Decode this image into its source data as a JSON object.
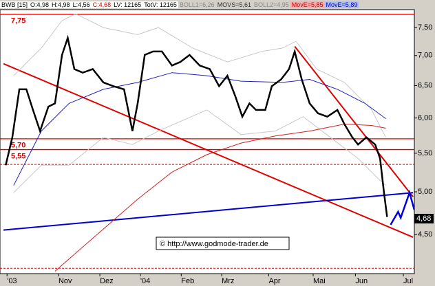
{
  "chart_data": {
    "type": "line",
    "header": [
      "BWB [15]",
      "O:4,98",
      "H:4,98",
      "L:4,56",
      "C:4,68",
      "LV: 12165",
      "TotV: 12165",
      "BOLL1=6,26",
      "MOVS=5,61",
      "BOLL2=4,95",
      "MovE=5,85",
      "MovE=5,89"
    ],
    "header_colors": [
      "#000",
      "#000",
      "#000",
      "#000",
      "#d00000",
      "#000",
      "#000",
      "#888",
      "#333",
      "#888",
      "#d00000",
      "#0000cc"
    ],
    "header_backgrounds": [
      "#fff",
      "#fff",
      "#fff",
      "#fff",
      "#fff",
      "#fff",
      "#fff",
      "#d4d0c8",
      "#d4d0c8",
      "#d4d0c8",
      "#f4b0b0",
      "#b0c0f4"
    ],
    "log_scale": true,
    "ylim": [
      4.086,
      7.84
    ],
    "yticks": [
      {
        "value": 4.5,
        "label": "4,50"
      },
      {
        "value": 5,
        "label": "5,00"
      },
      {
        "value": 5.5,
        "label": "5,50"
      },
      {
        "value": 6,
        "label": "6,00"
      },
      {
        "value": 6.5,
        "label": "6,50"
      },
      {
        "value": 7,
        "label": "7,00"
      },
      {
        "value": 7.5,
        "label": "7,50"
      }
    ],
    "xlim": [
      -0.08,
      9.34
    ],
    "xticks": [
      {
        "value": 0.08,
        "label": "'03"
      },
      {
        "value": 1.25,
        "label": "Nov"
      },
      {
        "value": 2.19,
        "label": "Dez"
      },
      {
        "value": 3.11,
        "label": "'04"
      },
      {
        "value": 4.04,
        "label": "Feb"
      },
      {
        "value": 4.96,
        "label": "Mrz"
      },
      {
        "value": 6.03,
        "label": "Apr"
      },
      {
        "value": 7.04,
        "label": "Mai"
      },
      {
        "value": 8.0,
        "label": "Jun"
      },
      {
        "value": 9.09,
        "label": "Jul"
      }
    ],
    "series": [
      {
        "color": "#c8c8c8",
        "x": [
          0.23,
          0.86,
          1.33,
          1.64,
          2.27,
          3.05,
          3.52,
          4.3,
          5.09,
          5.87,
          6.34,
          6.65,
          7.12,
          7.75,
          8.37,
          8.69
        ],
        "values": [
          6.66,
          7.13,
          7.63,
          7.76,
          7.5,
          7.37,
          7.5,
          7.13,
          6.89,
          7.07,
          7.13,
          7.25,
          6.77,
          6.55,
          6.12,
          5.72
        ]
      },
      {
        "color": "#c8c8c8",
        "x": [
          0.23,
          0.86,
          1.49,
          2.27,
          2.93,
          3.52,
          4.62,
          5.4,
          6.18,
          6.81,
          7.43,
          8.06,
          8.53,
          8.69
        ],
        "values": [
          4.99,
          5.34,
          5.34,
          5.72,
          5.62,
          5.81,
          6.12,
          5.76,
          5.81,
          6.02,
          5.72,
          5.43,
          5.16,
          5.08
        ]
      },
      {
        "color": "#2020c0",
        "x": [
          0.23,
          0.86,
          1.49,
          2.27,
          3.05,
          3.83,
          4.62,
          5.4,
          6.34,
          6.96,
          7.59,
          8.22,
          8.69
        ],
        "values": [
          5.08,
          5.81,
          6.22,
          6.44,
          6.55,
          6.71,
          6.66,
          6.57,
          6.55,
          6.6,
          6.44,
          6.22,
          5.99
        ]
      },
      {
        "color": "#d02020",
        "x": [
          1.17,
          1.96,
          3.05,
          3.83,
          4.62,
          5.4,
          6.18,
          6.96,
          7.75,
          8.37,
          8.69
        ],
        "values": [
          4.11,
          4.43,
          4.91,
          5.25,
          5.48,
          5.64,
          5.74,
          5.81,
          5.91,
          5.89,
          5.85
        ]
      },
      {
        "color": "#000000",
        "x": [
          0.05,
          0.2,
          0.36,
          0.52,
          0.67,
          0.83,
          1.02,
          1.17,
          1.33,
          1.46,
          1.61,
          1.8,
          2.03,
          2.27,
          2.5,
          2.74,
          2.93,
          3.05,
          3.21,
          3.4,
          3.6,
          3.83,
          4.02,
          4.23,
          4.46,
          4.69,
          4.9,
          5.09,
          5.27,
          5.43,
          5.59,
          5.74,
          5.95,
          6.1,
          6.31,
          6.49,
          6.62,
          6.78,
          6.96,
          7.15,
          7.36,
          7.59,
          7.75,
          7.93,
          8.06,
          8.25,
          8.45,
          8.56,
          8.65,
          8.72
        ],
        "values": [
          5.34,
          5.72,
          6.44,
          6.44,
          6.12,
          5.81,
          6.17,
          6.22,
          7.01,
          7.31,
          6.77,
          6.71,
          6.77,
          6.55,
          6.49,
          6.44,
          5.81,
          6.22,
          7.01,
          7.07,
          7.07,
          6.83,
          6.89,
          7.01,
          6.83,
          6.77,
          6.49,
          6.66,
          6.33,
          6.02,
          6.22,
          6.12,
          6.12,
          6.49,
          6.6,
          6.77,
          7.07,
          6.6,
          6.22,
          6.07,
          6.02,
          6.12,
          5.91,
          5.72,
          5.62,
          5.72,
          5.62,
          5.43,
          4.99,
          4.7
        ]
      },
      {
        "color": "#0000dd",
        "x": [
          8.8,
          8.97,
          9.03,
          9.23,
          9.34
        ],
        "values": [
          4.61,
          4.76,
          4.69,
          4.99,
          4.78
        ]
      }
    ],
    "trend_lines": [
      {
        "color": "#e00000",
        "x": [
          0,
          9.31
        ],
        "values": [
          6.86,
          4.47
        ]
      },
      {
        "color": "#0000cc",
        "x": [
          0,
          9.31
        ],
        "values": [
          4.55,
          4.99
        ]
      },
      {
        "color": "#e00000",
        "x": [
          6.62,
          9.31
        ],
        "values": [
          7.16,
          4.94
        ]
      }
    ],
    "levels": [
      {
        "value": 7.75,
        "label": "7,75"
      },
      {
        "value": 5.7,
        "label": "5,70"
      },
      {
        "value": 5.55,
        "label": "5,55"
      }
    ],
    "level_color": "#e00000",
    "dashed_levels": [
      5.35,
      4.14
    ],
    "last_price": {
      "value": 4.68,
      "label": "4,68"
    },
    "watermark": "© http://www.godmode-trader.de"
  }
}
